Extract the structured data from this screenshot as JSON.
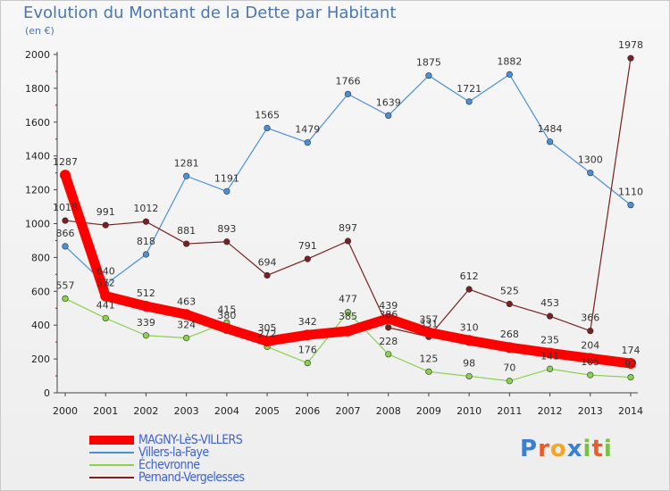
{
  "header": {
    "title": "Evolution du Montant de la Dette par Habitant",
    "subtitle": "(en €)"
  },
  "logo": {
    "text": "Proxiti",
    "letters": [
      "P",
      "r",
      "o",
      "x",
      "i",
      "t",
      "i"
    ],
    "colors": [
      "#3a7fd6",
      "#e85d2a",
      "#f5a623",
      "#3a7fd6",
      "#7ac143",
      "#e85d2a",
      "#7ac143"
    ]
  },
  "chart_data": {
    "type": "line",
    "title": "Evolution du Montant de la Dette par Habitant",
    "subtitle": "(en €)",
    "xlabel": "",
    "ylabel": "",
    "categories": [
      "2000",
      "2001",
      "2002",
      "2003",
      "2004",
      "2005",
      "2006",
      "2007",
      "2008",
      "2009",
      "2010",
      "2011",
      "2012",
      "2013",
      "2014"
    ],
    "ylim": [
      0,
      2000
    ],
    "yticks": [
      "0",
      "200",
      "400",
      "600",
      "800",
      "1000",
      "1200",
      "1400",
      "1600",
      "1800",
      "2000"
    ],
    "grid": false,
    "legend_position": "bottom-left",
    "series": [
      {
        "name": "MAGNY-LèS-VILLERS",
        "color": "#ff0000",
        "values": [
          1287,
          572,
          512,
          463,
          380,
          305,
          342,
          365,
          439,
          357,
          310,
          268,
          235,
          204,
          174
        ],
        "labels": [
          "1287",
          "572",
          "512",
          "463",
          "380",
          "305",
          "342",
          "",
          "439",
          "357",
          "310",
          "268",
          "235",
          "204",
          "174"
        ]
      },
      {
        "name": "Villers-la-Faye",
        "color": "#4a90d9",
        "values": [
          866,
          640,
          818,
          1281,
          1191,
          1565,
          1479,
          1766,
          1639,
          1875,
          1721,
          1882,
          1484,
          1300,
          1110
        ],
        "labels": [
          "866",
          "640",
          "818",
          "1281",
          "1191",
          "1565",
          "1479",
          "1766",
          "1639",
          "1875",
          "1721",
          "1882",
          "1484",
          "1300",
          "1110"
        ]
      },
      {
        "name": "Échevronne",
        "color": "#8bd14f",
        "values": [
          557,
          441,
          339,
          324,
          415,
          272,
          176,
          477,
          228,
          125,
          98,
          70,
          141,
          105,
          92
        ],
        "labels": [
          "557",
          "441",
          "339",
          "324",
          "415",
          "272",
          "176",
          "477",
          "228",
          "125",
          "98",
          "70",
          "141",
          "105",
          "92"
        ]
      },
      {
        "name": "Pernand-Vergelesses",
        "color": "#7a2020",
        "values": [
          1018,
          991,
          1012,
          881,
          893,
          694,
          791,
          897,
          386,
          331,
          612,
          525,
          453,
          366,
          1978
        ],
        "labels": [
          "1018",
          "991",
          "1012",
          "881",
          "893",
          "694",
          "791",
          "897",
          "386",
          "331",
          "612",
          "525",
          "453",
          "366",
          "1978"
        ]
      }
    ],
    "extra_labels": [
      "385"
    ]
  }
}
